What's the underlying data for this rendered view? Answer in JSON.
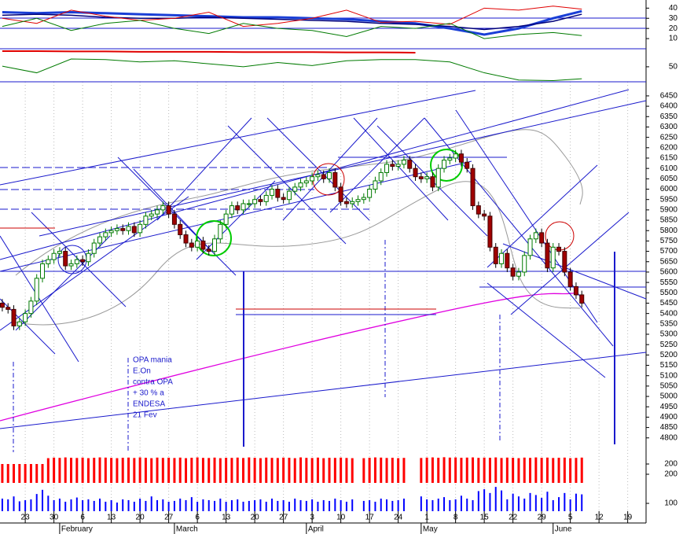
{
  "chart_data": {
    "type": "candlestick",
    "annotation": [
      "OPA mania",
      "E.On",
      "contra OPA",
      "+ 30 % a",
      "ENDESA",
      "21 Fev"
    ],
    "xlim": [
      -0.4,
      112.2
    ],
    "xticks": [
      {
        "value": 4,
        "label": "23"
      },
      {
        "value": 9,
        "label": "30"
      },
      {
        "value": 14,
        "label": "6"
      },
      {
        "value": 19,
        "label": "13"
      },
      {
        "value": 24,
        "label": "20"
      },
      {
        "value": 29,
        "label": "27"
      },
      {
        "value": 34,
        "label": "6"
      },
      {
        "value": 39,
        "label": "13"
      },
      {
        "value": 44,
        "label": "20"
      },
      {
        "value": 49,
        "label": "27"
      },
      {
        "value": 54,
        "label": "3"
      },
      {
        "value": 59,
        "label": "10"
      },
      {
        "value": 64,
        "label": "17"
      },
      {
        "value": 69,
        "label": "24"
      },
      {
        "value": 74,
        "label": "1"
      },
      {
        "value": 79,
        "label": "8"
      },
      {
        "value": 84,
        "label": "15"
      },
      {
        "value": 89,
        "label": "22"
      },
      {
        "value": 94,
        "label": "29"
      },
      {
        "value": 99,
        "label": "5"
      },
      {
        "value": 104,
        "label": "12"
      },
      {
        "value": 109,
        "label": "19"
      }
    ],
    "month_ticks": [
      {
        "value": 10,
        "label": "February"
      },
      {
        "value": 30,
        "label": "March"
      },
      {
        "value": 53,
        "label": "April"
      },
      {
        "value": 73,
        "label": "May"
      },
      {
        "value": 96,
        "label": "June"
      }
    ],
    "ylim": [
      4765,
      6518
    ],
    "yticks": [
      6450,
      6400,
      6350,
      6300,
      6250,
      6200,
      6150,
      6100,
      6050,
      6000,
      5950,
      5900,
      5850,
      5800,
      5750,
      5700,
      5650,
      5600,
      5550,
      5500,
      5450,
      5400,
      5350,
      5300,
      5250,
      5200,
      5150,
      5100,
      5050,
      5000,
      4950,
      4900,
      4850,
      4800
    ],
    "up_color": "#007a00",
    "down_color": "#a00000",
    "open": [
      5450,
      5430,
      5420,
      5340,
      5360,
      5400,
      5460,
      5570,
      5640,
      5660,
      5690,
      5700,
      5630,
      5640,
      5660,
      5650,
      5690,
      5740,
      5770,
      5790,
      5800,
      5810,
      5800,
      5820,
      5790,
      5830,
      5870,
      5880,
      5900,
      5920,
      5880,
      5830,
      5780,
      5740,
      5720,
      5750,
      5710,
      5700,
      5760,
      5830,
      5880,
      5920,
      5900,
      5930,
      5930,
      5950,
      5940,
      5970,
      6000,
      5960,
      5950,
      5990,
      6010,
      6030,
      6040,
      6060,
      6070,
      6050,
      6080,
      6010,
      5940,
      5930,
      5940,
      5950,
      5960,
      6000,
      6040,
      6080,
      6120,
      6110,
      6120,
      6140,
      6100,
      6060,
      6050,
      6060,
      6010,
      6100,
      6140,
      6150,
      6170,
      6130,
      6100,
      5920,
      5880,
      5870,
      5720,
      5640,
      5690,
      5620,
      5580,
      5600,
      5680,
      5760,
      5790,
      5740,
      5620,
      5720,
      5700,
      5600,
      5530,
      5490
    ],
    "high": [
      5470,
      5450,
      5440,
      5380,
      5420,
      5480,
      5590,
      5660,
      5680,
      5710,
      5720,
      5720,
      5660,
      5680,
      5680,
      5710,
      5760,
      5790,
      5810,
      5820,
      5830,
      5830,
      5840,
      5840,
      5850,
      5890,
      5900,
      5920,
      5940,
      5940,
      5900,
      5850,
      5800,
      5760,
      5770,
      5770,
      5730,
      5780,
      5850,
      5900,
      5940,
      5940,
      5950,
      5950,
      5970,
      5970,
      5990,
      6020,
      6020,
      5980,
      6010,
      6030,
      6050,
      6060,
      6080,
      6090,
      6090,
      6100,
      6100,
      6030,
      5960,
      5960,
      5970,
      5980,
      6020,
      6060,
      6100,
      6140,
      6140,
      6140,
      6160,
      6160,
      6120,
      6080,
      6080,
      6080,
      6120,
      6160,
      6170,
      6190,
      6190,
      6150,
      6120,
      5940,
      5900,
      5890,
      5740,
      5710,
      5710,
      5640,
      5620,
      5700,
      5780,
      5810,
      5810,
      5760,
      5740,
      5740,
      5720,
      5620,
      5550,
      5510
    ],
    "low": [
      5410,
      5400,
      5320,
      5320,
      5340,
      5380,
      5440,
      5550,
      5620,
      5640,
      5670,
      5610,
      5610,
      5620,
      5630,
      5630,
      5670,
      5720,
      5750,
      5770,
      5780,
      5780,
      5780,
      5770,
      5770,
      5810,
      5850,
      5860,
      5880,
      5860,
      5810,
      5760,
      5720,
      5700,
      5700,
      5690,
      5680,
      5680,
      5740,
      5810,
      5860,
      5880,
      5880,
      5910,
      5910,
      5920,
      5920,
      5950,
      5940,
      5930,
      5930,
      5970,
      5990,
      6010,
      6020,
      6040,
      6030,
      6030,
      5990,
      5920,
      5910,
      5910,
      5920,
      5930,
      5940,
      5980,
      6020,
      6060,
      6090,
      6090,
      6100,
      6080,
      6040,
      6030,
      6030,
      5990,
      5990,
      6080,
      6120,
      6130,
      6110,
      6080,
      5900,
      5860,
      5850,
      5700,
      5620,
      5620,
      5600,
      5560,
      5560,
      5580,
      5660,
      5740,
      5720,
      5600,
      5600,
      5680,
      5580,
      5510,
      5470,
      5430
    ],
    "close": [
      5430,
      5420,
      5340,
      5360,
      5400,
      5460,
      5570,
      5640,
      5660,
      5690,
      5700,
      5630,
      5640,
      5660,
      5650,
      5690,
      5740,
      5770,
      5790,
      5800,
      5810,
      5800,
      5820,
      5790,
      5830,
      5870,
      5880,
      5900,
      5920,
      5880,
      5830,
      5780,
      5740,
      5720,
      5750,
      5710,
      5700,
      5760,
      5830,
      5880,
      5920,
      5900,
      5930,
      5930,
      5950,
      5940,
      5970,
      6000,
      5960,
      5950,
      5990,
      6010,
      6030,
      6040,
      6060,
      6070,
      6050,
      6080,
      6010,
      5940,
      5930,
      5940,
      5950,
      5960,
      6000,
      6040,
      6080,
      6120,
      6110,
      6120,
      6140,
      6100,
      6060,
      6050,
      6060,
      6010,
      6100,
      6140,
      6150,
      6170,
      6130,
      6100,
      5920,
      5880,
      5870,
      5720,
      5640,
      5690,
      5620,
      5580,
      5600,
      5680,
      5760,
      5790,
      5740,
      5620,
      5720,
      5700,
      5600,
      5530,
      5490,
      5450
    ],
    "volume_red": {
      "color": "#ff0000",
      "ylim": [
        0,
        300
      ],
      "yticks": [
        200
      ],
      "values": [
        200,
        200,
        200,
        200,
        200,
        200,
        200,
        200,
        262,
        268,
        265,
        270,
        266,
        264,
        268,
        262,
        266,
        270,
        268,
        265,
        262,
        266,
        268,
        264,
        270,
        266,
        262,
        268,
        265,
        267,
        264,
        268,
        262,
        266,
        270,
        265,
        264,
        268,
        262,
        266,
        265,
        268,
        264,
        270,
        266,
        262,
        268,
        265,
        264,
        268,
        266,
        262,
        270,
        265,
        264,
        268,
        262,
        266,
        265,
        268,
        264,
        262,
        null,
        262,
        266,
        270,
        268,
        264,
        266,
        262,
        265,
        null,
        null,
        264,
        268,
        270,
        266,
        272,
        268,
        270,
        266,
        268,
        270,
        265,
        268,
        266,
        270,
        264,
        268,
        266,
        262,
        268,
        265,
        270,
        266,
        268,
        264,
        266,
        268,
        262,
        265,
        268
      ]
    },
    "volume_blue": {
      "color": "#0000ff",
      "log": true,
      "ylim": [
        83,
        260
      ],
      "yticks": [
        200,
        100
      ],
      "values": [
        112,
        110,
        118,
        105,
        108,
        110,
        125,
        138,
        120,
        108,
        112,
        104,
        110,
        115,
        108,
        110,
        106,
        112,
        104,
        108,
        102,
        110,
        108,
        104,
        112,
        106,
        118,
        108,
        110,
        104,
        106,
        112,
        108,
        116,
        104,
        110,
        108,
        106,
        112,
        104,
        108,
        110,
        104,
        106,
        108,
        110,
        104,
        112,
        106,
        108,
        104,
        112,
        108,
        106,
        110,
        104,
        108,
        106,
        112,
        108,
        104,
        110,
        null,
        106,
        108,
        104,
        112,
        110,
        106,
        108,
        112,
        null,
        null,
        118,
        110,
        108,
        112,
        116,
        108,
        110,
        120,
        112,
        108,
        134,
        140,
        128,
        148,
        136,
        110,
        126,
        118,
        112,
        128,
        122,
        114,
        132,
        108,
        116,
        128,
        110,
        126,
        124
      ]
    },
    "indicator_top": {
      "ylim": [
        0,
        48
      ],
      "yticks": [
        40,
        30,
        20,
        10
      ],
      "x": [
        0,
        6,
        12,
        18,
        24,
        30,
        36,
        42,
        48,
        54,
        60,
        66,
        72,
        78,
        84,
        90,
        96,
        101
      ],
      "series": [
        {
          "color": "#1a3fd6",
          "width": 3,
          "values": [
            36,
            35,
            36,
            35,
            34,
            33,
            32,
            31,
            31,
            30,
            29,
            27,
            25,
            20,
            14,
            20,
            30,
            37
          ]
        },
        {
          "color": "#00007a",
          "width": 1.5,
          "values": [
            33,
            34,
            33,
            31,
            30,
            30,
            31,
            30,
            29,
            28,
            27,
            25,
            24,
            22,
            19,
            22,
            27,
            34
          ]
        },
        {
          "color": "#e00000",
          "width": 1,
          "values": [
            30,
            25,
            38,
            32,
            28,
            30,
            36,
            22,
            25,
            30,
            38,
            26,
            27,
            24,
            40,
            38,
            42,
            39
          ]
        },
        {
          "color": "#007a00",
          "width": 1,
          "values": [
            22,
            30,
            18,
            25,
            28,
            20,
            15,
            25,
            20,
            18,
            12,
            22,
            20,
            25,
            10,
            14,
            16,
            13
          ]
        }
      ]
    },
    "indicator_mid": {
      "ylim": [
        25,
        80
      ],
      "yticks": [
        50
      ],
      "x": [
        0,
        6,
        12,
        18,
        24,
        30,
        36,
        42,
        48,
        54,
        60,
        66,
        72,
        78,
        84,
        90,
        96,
        101
      ],
      "series": [
        {
          "color": "#007a00",
          "width": 1,
          "values": [
            51,
            40,
            63,
            62,
            58,
            60,
            55,
            50,
            57,
            52,
            60,
            62,
            62,
            58,
            40,
            28,
            27,
            30
          ]
        },
        {
          "color": "#e00000",
          "width": 2,
          "values": [
            76,
            76,
            75.5,
            75.5,
            75,
            75,
            75,
            74.5,
            74.5,
            74.5,
            74,
            74,
            73.5,
            null,
            null,
            null,
            null,
            null
          ]
        }
      ]
    }
  }
}
